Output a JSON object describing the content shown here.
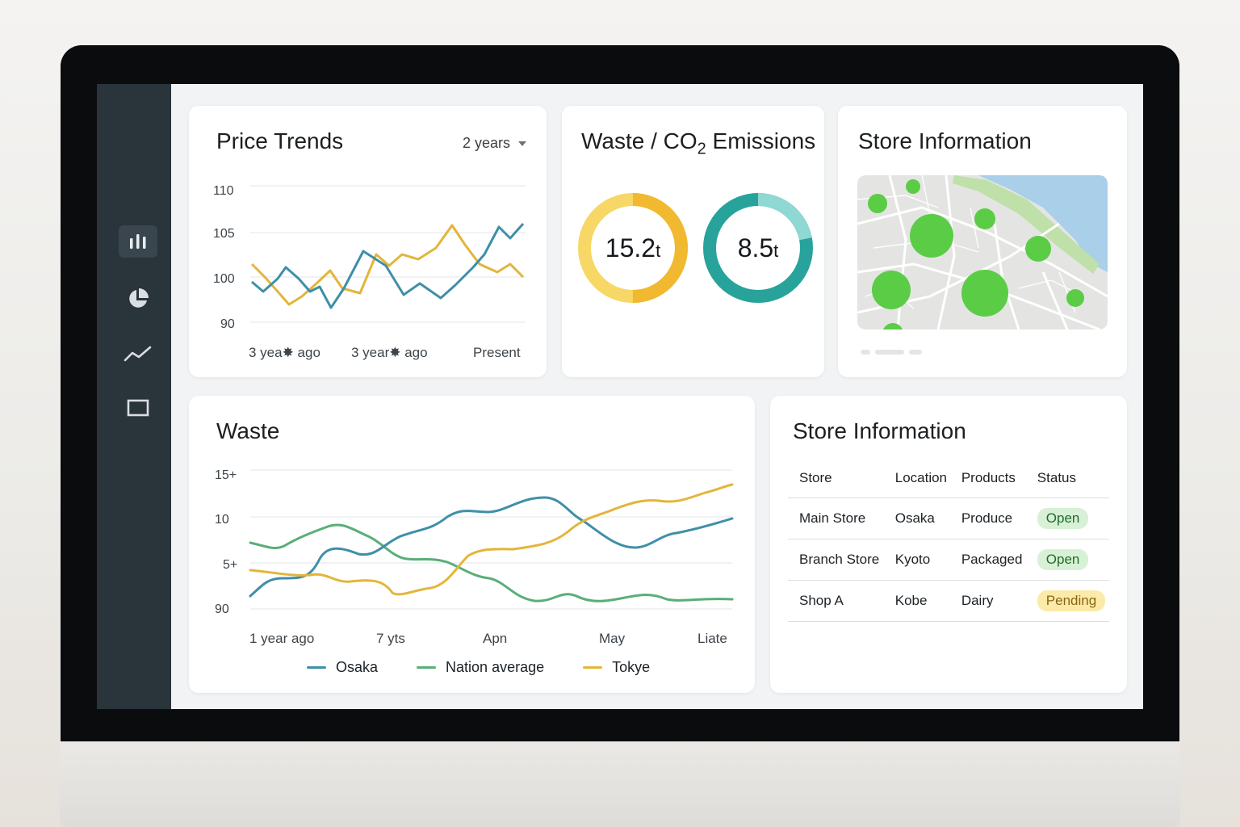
{
  "sidebar": {
    "items": [
      {
        "name": "bar-chart-icon",
        "active": true
      },
      {
        "name": "pie-chart-icon",
        "active": false
      },
      {
        "name": "line-chart-icon",
        "active": false
      },
      {
        "name": "window-icon",
        "active": false
      }
    ]
  },
  "price_trends": {
    "title": "Price Trends",
    "range_select": "2 years",
    "y_ticks": [
      "110",
      "105",
      "100",
      "90"
    ],
    "x_labels": [
      "3 yea✸ ago",
      "3 year✸ ago",
      "Present"
    ],
    "colors": {
      "blue": "#3f8fa8",
      "yellow": "#e3b53a"
    }
  },
  "emissions": {
    "title_prefix": "Waste / CO",
    "title_sub": "2",
    "title_suffix": " Emissions",
    "donuts": [
      {
        "value": "15.2",
        "unit": "t",
        "fraction": 0.5,
        "color_main": "#f0b930",
        "color_light": "#f7d765"
      },
      {
        "value": "8.5",
        "unit": "t",
        "fraction": 0.22,
        "color_main": "#27a39c",
        "color_light": "#8fd8d3"
      }
    ]
  },
  "store_map": {
    "title": "Store Information"
  },
  "waste": {
    "title": "Waste",
    "y_ticks": [
      "15+",
      "10",
      "5+",
      "90"
    ],
    "x_labels": [
      "1 year ago",
      "7 yts",
      "Apn",
      "May",
      "Liate"
    ],
    "legend": [
      {
        "label": "Osaka",
        "color": "#3f8fa8"
      },
      {
        "label": "Nation average",
        "color": "#5aae78"
      },
      {
        "label": "Tokye",
        "color": "#e3b53a"
      }
    ]
  },
  "store_table": {
    "title": "Store Information",
    "columns": [
      "Store",
      "Location",
      "Products",
      "Status"
    ],
    "rows": [
      {
        "store": "Main Store",
        "location": "Osaka",
        "products": "Produce",
        "status": "Open",
        "status_type": "open"
      },
      {
        "store": "Branch Store",
        "location": "Kyoto",
        "products": "Packaged",
        "status": "Open",
        "status_type": "open"
      },
      {
        "store": "Shop A",
        "location": "Kobe",
        "products": "Dairy",
        "status": "Pending",
        "status_type": "pending"
      }
    ]
  }
}
